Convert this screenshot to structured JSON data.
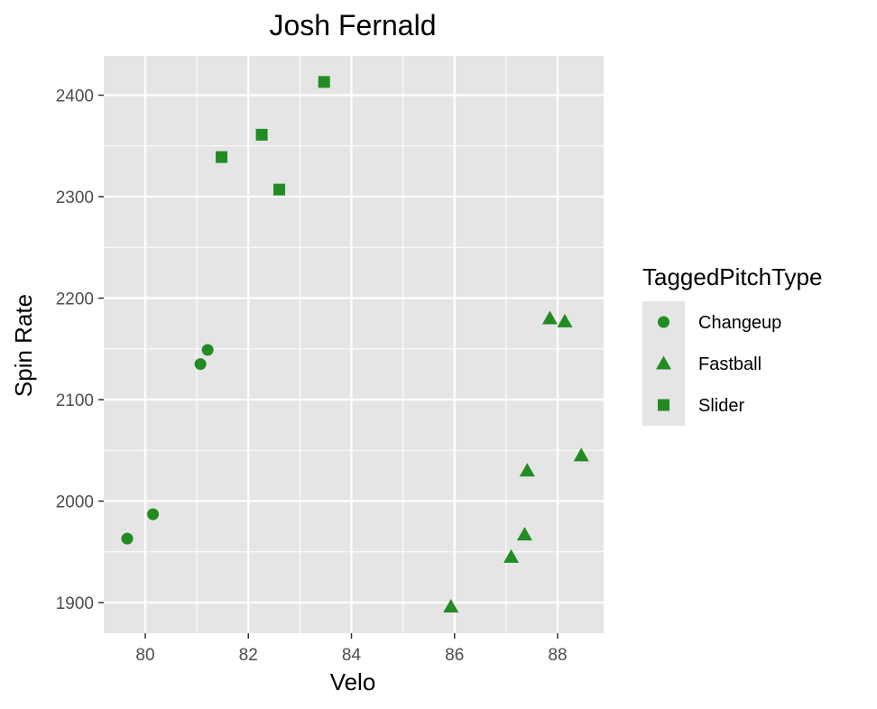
{
  "chart_data": {
    "type": "scatter",
    "title": "Josh Fernald",
    "xlabel": "Velo",
    "ylabel": "Spin Rate",
    "xlim": [
      79.2,
      88.9
    ],
    "ylim": [
      1870,
      2440
    ],
    "x_ticks": [
      80,
      82,
      84,
      86,
      88
    ],
    "y_ticks": [
      1900,
      2000,
      2100,
      2200,
      2300,
      2400
    ],
    "x_tick_labels": [
      "80",
      "82",
      "84",
      "86",
      "88"
    ],
    "y_tick_labels": [
      "1900",
      "2000",
      "2100",
      "2200",
      "2300",
      "2400"
    ],
    "grid": true,
    "point_color": "#228b22",
    "panel_background": "#e5e5e5",
    "grid_color": "#ffffff",
    "legend": {
      "title": "TaggedPitchType",
      "position": "right"
    },
    "series": [
      {
        "name": "Changeup",
        "shape": "circle",
        "points": [
          {
            "x": 79.65,
            "y": 1963
          },
          {
            "x": 80.15,
            "y": 1987
          },
          {
            "x": 81.07,
            "y": 2135
          },
          {
            "x": 81.21,
            "y": 2149
          }
        ]
      },
      {
        "name": "Fastball",
        "shape": "triangle",
        "points": [
          {
            "x": 85.93,
            "y": 1896
          },
          {
            "x": 87.1,
            "y": 1945
          },
          {
            "x": 87.36,
            "y": 1967
          },
          {
            "x": 87.41,
            "y": 2030
          },
          {
            "x": 87.85,
            "y": 2180
          },
          {
            "x": 88.14,
            "y": 2177
          },
          {
            "x": 88.46,
            "y": 2045
          }
        ]
      },
      {
        "name": "Slider",
        "shape": "square",
        "points": [
          {
            "x": 81.48,
            "y": 2339
          },
          {
            "x": 82.26,
            "y": 2361
          },
          {
            "x": 82.6,
            "y": 2307
          },
          {
            "x": 83.47,
            "y": 2413
          }
        ]
      }
    ]
  }
}
